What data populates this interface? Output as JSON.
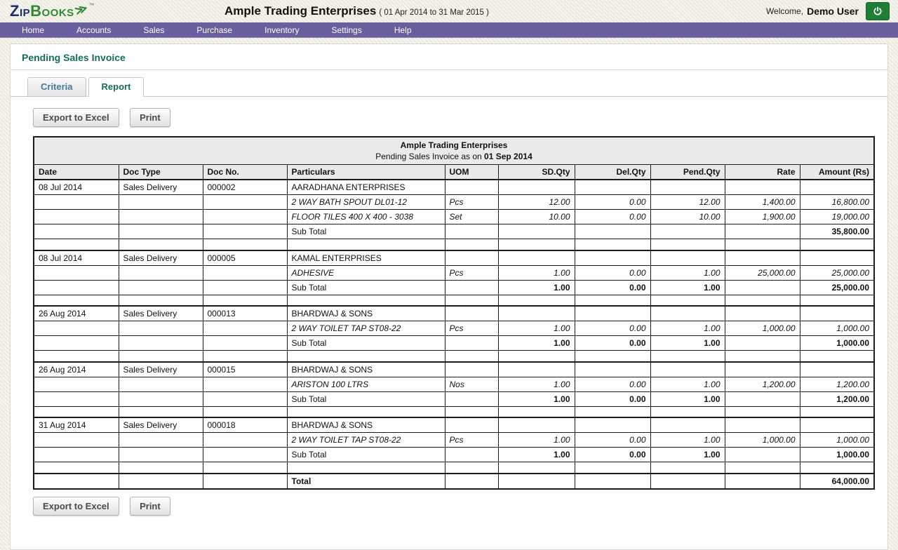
{
  "app": {
    "logo_zip": "Zip",
    "logo_books": "Books",
    "logo_arrow": "≫",
    "logo_tm": "™",
    "company_title": "Ample Trading Enterprises",
    "period": "( 01 Apr 2014 to 31 Mar 2015 )",
    "welcome_label": "Welcome,",
    "user_name": "Demo User",
    "colors": {
      "nav_purple": "#6a5e9c",
      "heading_green": "#156f4f",
      "logo_navy": "#1c2e6e",
      "logo_green": "#2e8b31",
      "power_button_green": "#1e7e34",
      "criteria_tab_text": "#44789f"
    }
  },
  "nav": {
    "items": [
      "Home",
      "Accounts",
      "Sales",
      "Purchase",
      "Inventory",
      "Settings",
      "Help"
    ]
  },
  "page": {
    "title": "Pending Sales Invoice"
  },
  "tabs": {
    "criteria": "Criteria",
    "report": "Report"
  },
  "actions": {
    "export_label": "Export to Excel",
    "print_label": "Print"
  },
  "report": {
    "title_company": "Ample Trading Enterprises",
    "title_as_on": "Pending Sales Invoice as on",
    "title_date": "01 Sep 2014",
    "columns": [
      "Date",
      "Doc Type",
      "Doc No.",
      "Particulars",
      "UOM",
      "SD.Qty",
      "Del.Qty",
      "Pend.Qty",
      "Rate",
      "Amount (Rs)"
    ],
    "sub_total_label": "Sub Total",
    "total_label": "Total",
    "total_amount": "64,000.00",
    "groups": [
      {
        "date": "08 Jul 2014",
        "doc_type": "Sales Delivery",
        "doc_no": "000002",
        "party": "AARADHANA ENTERPRISES",
        "items": [
          {
            "name": "2 WAY BATH SPOUT DL01-12",
            "uom": "Pcs",
            "sd": "12.00",
            "del": "0.00",
            "pend": "12.00",
            "rate": "1,400.00",
            "amount": "16,800.00"
          },
          {
            "name": "FLOOR TILES 400 X 400 - 3038",
            "uom": "Set",
            "sd": "10.00",
            "del": "0.00",
            "pend": "10.00",
            "rate": "1,900.00",
            "amount": "19,000.00"
          }
        ],
        "sub_total": {
          "sd": "",
          "del": "",
          "pend": "",
          "amount": "35,800.00"
        }
      },
      {
        "date": "08 Jul 2014",
        "doc_type": "Sales Delivery",
        "doc_no": "000005",
        "party": "KAMAL ENTERPRISES",
        "items": [
          {
            "name": "ADHESIVE",
            "uom": "Pcs",
            "sd": "1.00",
            "del": "0.00",
            "pend": "1.00",
            "rate": "25,000.00",
            "amount": "25,000.00"
          }
        ],
        "sub_total": {
          "sd": "1.00",
          "del": "0.00",
          "pend": "1.00",
          "amount": "25,000.00"
        }
      },
      {
        "date": "26 Aug 2014",
        "doc_type": "Sales Delivery",
        "doc_no": "000013",
        "party": "BHARDWAJ & SONS",
        "items": [
          {
            "name": "2 WAY TOILET TAP ST08-22",
            "uom": "Pcs",
            "sd": "1.00",
            "del": "0.00",
            "pend": "1.00",
            "rate": "1,000.00",
            "amount": "1,000.00"
          }
        ],
        "sub_total": {
          "sd": "1.00",
          "del": "0.00",
          "pend": "1.00",
          "amount": "1,000.00"
        }
      },
      {
        "date": "26 Aug 2014",
        "doc_type": "Sales Delivery",
        "doc_no": "000015",
        "party": "BHARDWAJ & SONS",
        "items": [
          {
            "name": "ARISTON 100 LTRS",
            "uom": "Nos",
            "sd": "1.00",
            "del": "0.00",
            "pend": "1.00",
            "rate": "1,200.00",
            "amount": "1,200.00"
          }
        ],
        "sub_total": {
          "sd": "1.00",
          "del": "0.00",
          "pend": "1.00",
          "amount": "1,200.00"
        }
      },
      {
        "date": "31 Aug 2014",
        "doc_type": "Sales Delivery",
        "doc_no": "000018",
        "party": "BHARDWAJ & SONS",
        "items": [
          {
            "name": "2 WAY TOILET TAP ST08-22",
            "uom": "Pcs",
            "sd": "1.00",
            "del": "0.00",
            "pend": "1.00",
            "rate": "1,000.00",
            "amount": "1,000.00"
          }
        ],
        "sub_total": {
          "sd": "1.00",
          "del": "0.00",
          "pend": "1.00",
          "amount": "1,000.00"
        }
      }
    ]
  }
}
